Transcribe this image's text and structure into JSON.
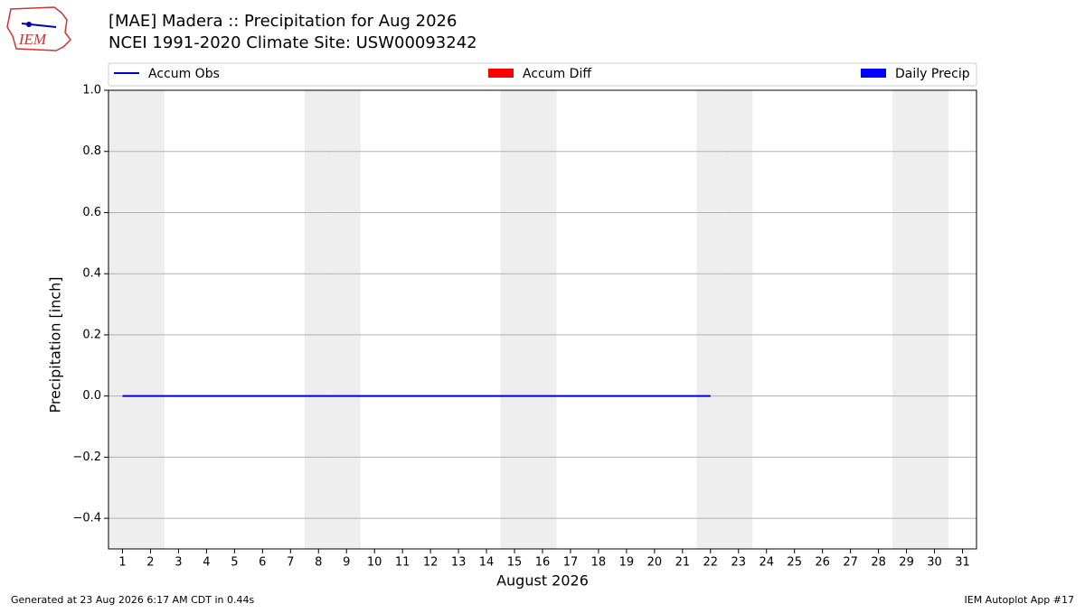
{
  "chart_data": {
    "type": "line",
    "title": "[MAE] Madera :: Precipitation for Aug 2026",
    "subtitle": "NCEI 1991-2020 Climate Site: USW00093242",
    "y_label": "Precipitation [inch]",
    "x_label": "August 2026",
    "x": [
      1,
      2,
      3,
      4,
      5,
      6,
      7,
      8,
      9,
      10,
      11,
      12,
      13,
      14,
      15,
      16,
      17,
      18,
      19,
      20,
      21,
      22
    ],
    "series": [
      {
        "name": "Accum Obs",
        "color": "#0000cc",
        "kind": "line",
        "values": [
          0,
          0,
          0,
          0,
          0,
          0,
          0,
          0,
          0,
          0,
          0,
          0,
          0,
          0,
          0,
          0,
          0,
          0,
          0,
          0,
          0,
          0
        ]
      },
      {
        "name": "Accum Diff",
        "color": "#ff0000",
        "kind": "bar",
        "values": [
          0,
          0,
          0,
          0,
          0,
          0,
          0,
          0,
          0,
          0,
          0,
          0,
          0,
          0,
          0,
          0,
          0,
          0,
          0,
          0,
          0,
          0
        ]
      },
      {
        "name": "Daily Precip",
        "color": "#0000ff",
        "kind": "bar",
        "values": [
          0,
          0,
          0,
          0,
          0,
          0,
          0,
          0,
          0,
          0,
          0,
          0,
          0,
          0,
          0,
          0,
          0,
          0,
          0,
          0,
          0,
          0
        ]
      }
    ],
    "xlim": [
      0.5,
      31.5
    ],
    "xticks": [
      1,
      2,
      3,
      4,
      5,
      6,
      7,
      8,
      9,
      10,
      11,
      12,
      13,
      14,
      15,
      16,
      17,
      18,
      19,
      20,
      21,
      22,
      23,
      24,
      25,
      26,
      27,
      28,
      29,
      30,
      31
    ],
    "ylim": [
      -0.5,
      1.0
    ],
    "yticks": [
      {
        "value": -0.4,
        "label": "−0.4"
      },
      {
        "value": -0.2,
        "label": "−0.2"
      },
      {
        "value": 0,
        "label": "0.0"
      },
      0.2,
      0.4,
      0.6,
      0.8,
      {
        "value": 1.0,
        "label": "1.0"
      }
    ],
    "grid": true,
    "shaded_days": [
      1,
      2,
      8,
      9,
      15,
      16,
      22,
      23,
      29,
      30
    ],
    "shade_color": "#eeeeee",
    "footer_left": "Generated at 23 Aug 2026 6:17 AM CDT in 0.44s",
    "footer_right": "IEM Autoplot App #17",
    "logo_text": "IEM"
  }
}
